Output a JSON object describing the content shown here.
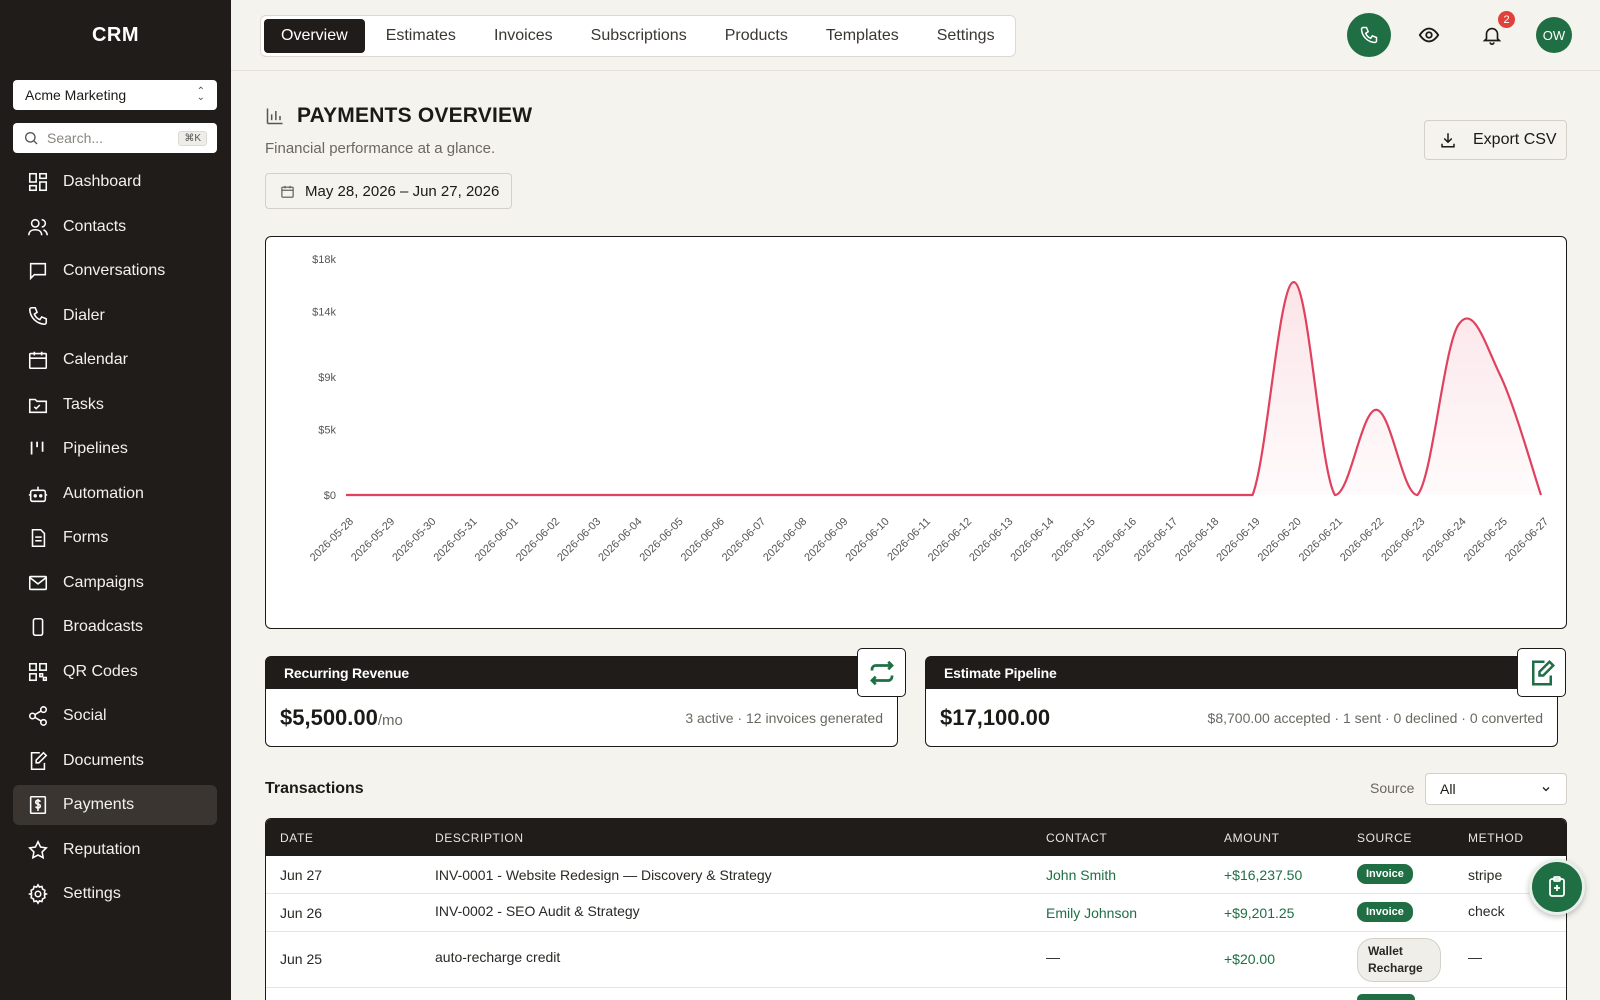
{
  "app": {
    "brand": "CRM"
  },
  "workspace": {
    "name": "Acme Marketing"
  },
  "search": {
    "placeholder": "Search...",
    "shortcut": "⌘K"
  },
  "sidebar": {
    "items": [
      {
        "label": "Dashboard",
        "icon": "dashboard-icon"
      },
      {
        "label": "Contacts",
        "icon": "contacts-icon"
      },
      {
        "label": "Conversations",
        "icon": "chat-icon"
      },
      {
        "label": "Dialer",
        "icon": "phone-icon"
      },
      {
        "label": "Calendar",
        "icon": "calendar-icon"
      },
      {
        "label": "Tasks",
        "icon": "tasks-icon"
      },
      {
        "label": "Pipelines",
        "icon": "pipelines-icon"
      },
      {
        "label": "Automation",
        "icon": "robot-icon"
      },
      {
        "label": "Forms",
        "icon": "form-icon"
      },
      {
        "label": "Campaigns",
        "icon": "mail-icon"
      },
      {
        "label": "Broadcasts",
        "icon": "mobile-icon"
      },
      {
        "label": "QR Codes",
        "icon": "qr-icon"
      },
      {
        "label": "Social",
        "icon": "share-icon"
      },
      {
        "label": "Documents",
        "icon": "document-edit-icon"
      },
      {
        "label": "Payments",
        "icon": "payments-icon",
        "active": true
      },
      {
        "label": "Reputation",
        "icon": "star-icon"
      },
      {
        "label": "Settings",
        "icon": "gear-icon"
      }
    ]
  },
  "tabs": [
    {
      "label": "Overview",
      "active": true
    },
    {
      "label": "Estimates"
    },
    {
      "label": "Invoices"
    },
    {
      "label": "Subscriptions"
    },
    {
      "label": "Products"
    },
    {
      "label": "Templates"
    },
    {
      "label": "Settings"
    }
  ],
  "topbar": {
    "notifications_count": "2",
    "avatar_initials": "OW"
  },
  "header": {
    "title": "PAYMENTS OVERVIEW",
    "subtitle": "Financial performance at a glance.",
    "date_range": "May 28, 2026 – Jun 27, 2026",
    "export_label": "Export CSV"
  },
  "chart_data": {
    "type": "area",
    "x": [
      "2026-05-28",
      "2026-05-29",
      "2026-05-30",
      "2026-05-31",
      "2026-06-01",
      "2026-06-02",
      "2026-06-03",
      "2026-06-04",
      "2026-06-05",
      "2026-06-06",
      "2026-06-07",
      "2026-06-08",
      "2026-06-09",
      "2026-06-10",
      "2026-06-11",
      "2026-06-12",
      "2026-06-13",
      "2026-06-14",
      "2026-06-15",
      "2026-06-16",
      "2026-06-17",
      "2026-06-18",
      "2026-06-19",
      "2026-06-20",
      "2026-06-21",
      "2026-06-22",
      "2026-06-23",
      "2026-06-24",
      "2026-06-25",
      "2026-06-27"
    ],
    "values": [
      0,
      0,
      0,
      0,
      0,
      0,
      0,
      0,
      0,
      0,
      0,
      0,
      0,
      0,
      0,
      0,
      0,
      0,
      0,
      0,
      0,
      0,
      0,
      16237.5,
      0,
      6500,
      0,
      13000,
      9201.25,
      0
    ],
    "y_ticks": [
      {
        "label": "$18k",
        "value": 18000
      },
      {
        "label": "$14k",
        "value": 14000
      },
      {
        "label": "$9k",
        "value": 9000
      },
      {
        "label": "$5k",
        "value": 5000
      },
      {
        "label": "$0",
        "value": 0
      }
    ],
    "ylim": [
      0,
      18000
    ],
    "line_color": "#e0415e",
    "fill_color": "#fbe4e8",
    "grid": false
  },
  "kpis": {
    "recurring": {
      "title": "Recurring Revenue",
      "value": "$5,500.00",
      "suffix": "/mo",
      "detail": "3 active · 12 invoices generated",
      "icon": "repeat-icon"
    },
    "pipeline": {
      "title": "Estimate Pipeline",
      "value": "$17,100.00",
      "detail": "$8,700.00 accepted · 1 sent · 0 declined · 0 converted",
      "icon": "document-edit-icon"
    }
  },
  "transactions": {
    "title": "Transactions",
    "source_label": "Source",
    "source_value": "All",
    "columns": [
      "DATE",
      "DESCRIPTION",
      "CONTACT",
      "AMOUNT",
      "SOURCE",
      "METHOD"
    ],
    "rows": [
      {
        "date": "Jun 27",
        "description": "INV-0001 - Website Redesign — Discovery & Strategy",
        "contact": "John Smith",
        "amount": "+$16,237.50",
        "source": "Invoice",
        "method": "stripe"
      },
      {
        "date": "Jun 26",
        "description": "INV-0002 - SEO Audit & Strategy",
        "contact": "Emily Johnson",
        "amount": "+$9,201.25",
        "source": "Invoice",
        "method": "check"
      },
      {
        "date": "Jun 25",
        "description": "auto-recharge credit",
        "contact": "—",
        "amount": "+$20.00",
        "source": "Wallet Recharge",
        "method": "—"
      }
    ]
  },
  "colors": {
    "sidebar_bg": "#1f1c19",
    "accent_green": "#1f6e44",
    "chart_line": "#e0415e",
    "page_bg": "#f5f3ee"
  }
}
